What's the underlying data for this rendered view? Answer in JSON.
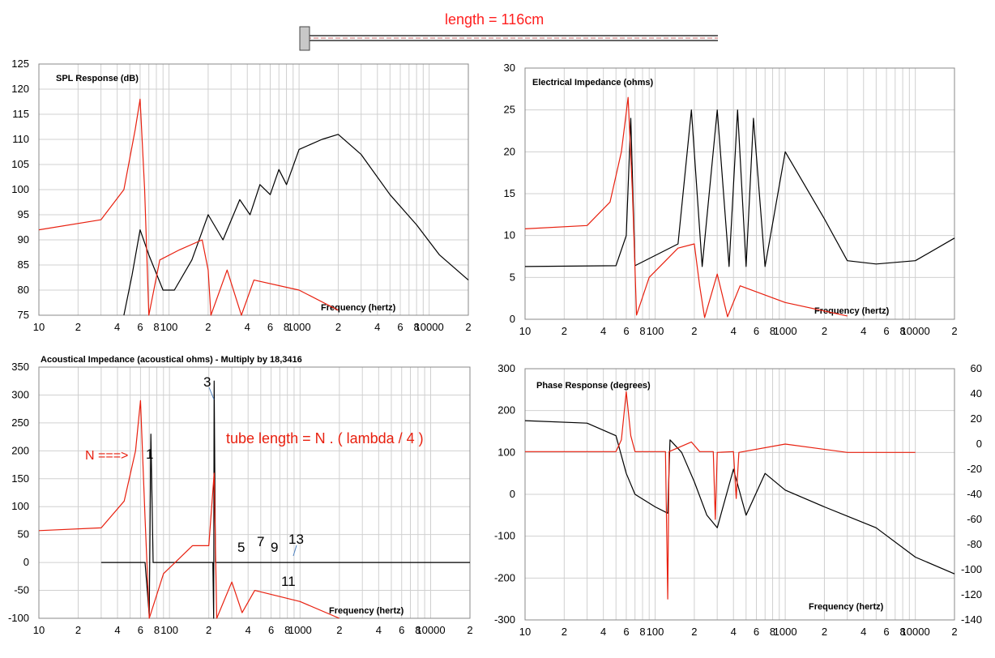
{
  "header": {
    "length_label": "length = 116cm"
  },
  "colors": {
    "red": "#e8200f",
    "black": "#000000",
    "grid": "#d0d0d0",
    "frame": "#888888"
  },
  "charts": [
    {
      "id": "spl",
      "title": "SPL Response (dB)",
      "xlabel": "Frequency (hertz)",
      "xscale": "log",
      "xlim": [
        10,
        20000
      ],
      "ylim": [
        75,
        125
      ],
      "yticks": [
        "75",
        "80",
        "85",
        "90",
        "95",
        "100",
        "105",
        "110",
        "115",
        "120",
        "125"
      ],
      "xticklabels": [
        "10",
        "2",
        "4",
        "6",
        "8",
        "100",
        "2",
        "4",
        "6",
        "8",
        "1000",
        "2",
        "4",
        "6",
        "8",
        "10000",
        "2"
      ],
      "grid": true
    },
    {
      "id": "impedance",
      "title": "Electrical Impedance (ohms)",
      "xlabel": "Frequency (hertz)",
      "xscale": "log",
      "xlim": [
        10,
        20000
      ],
      "ylim": [
        0,
        30
      ],
      "yticks": [
        "0",
        "5",
        "10",
        "15",
        "20",
        "25",
        "30"
      ],
      "xticklabels": [
        "10",
        "2",
        "4",
        "6",
        "8",
        "100",
        "2",
        "4",
        "6",
        "8",
        "1000",
        "2",
        "4",
        "6",
        "8",
        "10000",
        "2"
      ],
      "grid": true
    },
    {
      "id": "acoustic",
      "title": "Acoustical Impedance (acoustical ohms) - Multiply by 18,3416",
      "xlabel": "Frequency (hertz)",
      "xscale": "log",
      "xlim": [
        10,
        20000
      ],
      "ylim": [
        -100,
        350
      ],
      "yticks": [
        "-100",
        "-50",
        "0",
        "50",
        "100",
        "150",
        "200",
        "250",
        "300",
        "350"
      ],
      "xticklabels": [
        "10",
        "2",
        "4",
        "6",
        "8",
        "100",
        "2",
        "4",
        "6",
        "8",
        "1000",
        "2",
        "4",
        "6",
        "8",
        "10000",
        "2"
      ],
      "grid": true,
      "annotation_formula": "tube length = N . ( lambda / 4 )",
      "annotation_n": "N  ===>",
      "harmonic_labels": [
        "1",
        "3",
        "5",
        "7",
        "9",
        "11",
        "13"
      ]
    },
    {
      "id": "phase",
      "title": "Phase Response (degrees)",
      "xlabel": "Frequency (hertz)",
      "xscale": "log",
      "xlim": [
        10,
        20000
      ],
      "ylim": [
        -300,
        300
      ],
      "yticks": [
        "-300",
        "-200",
        "-100",
        "0",
        "100",
        "200",
        "300"
      ],
      "y2lim": [
        -140,
        60
      ],
      "y2ticks": [
        "-140",
        "-120",
        "-100",
        "-80",
        "-60",
        "-40",
        "-20",
        "0",
        "20",
        "40",
        "60"
      ],
      "xticklabels": [
        "10",
        "2",
        "4",
        "6",
        "8",
        "100",
        "2",
        "4",
        "6",
        "8",
        "1000",
        "2",
        "4",
        "6",
        "8",
        "10000",
        "2"
      ],
      "grid": true
    }
  ],
  "chart_data": [
    {
      "type": "line",
      "title": "SPL Response (dB)",
      "xlabel": "Frequency (hertz)",
      "ylim": [
        75,
        125
      ],
      "series": [
        {
          "color": "#000000",
          "points": [
            [
              45,
              75
            ],
            [
              52,
              83
            ],
            [
              60,
              92
            ],
            [
              70,
              87
            ],
            [
              90,
              80
            ],
            [
              110,
              80
            ],
            [
              150,
              86
            ],
            [
              200,
              95
            ],
            [
              260,
              90
            ],
            [
              350,
              98
            ],
            [
              420,
              95
            ],
            [
              500,
              101
            ],
            [
              600,
              99
            ],
            [
              700,
              104
            ],
            [
              800,
              101
            ],
            [
              1000,
              108
            ],
            [
              1500,
              110
            ],
            [
              2000,
              111
            ],
            [
              3000,
              107
            ],
            [
              5000,
              99
            ],
            [
              8000,
              93
            ],
            [
              12000,
              87
            ],
            [
              20000,
              82
            ]
          ]
        },
        {
          "color": "#e8200f",
          "points": [
            [
              10,
              92
            ],
            [
              30,
              94
            ],
            [
              45,
              100
            ],
            [
              55,
              112
            ],
            [
              60,
              118
            ],
            [
              65,
              100
            ],
            [
              70,
              75
            ],
            [
              85,
              86
            ],
            [
              120,
              88
            ],
            [
              180,
              90
            ],
            [
              200,
              84
            ],
            [
              210,
              75
            ],
            [
              280,
              84
            ],
            [
              360,
              75
            ],
            [
              450,
              82
            ],
            [
              1000,
              80
            ],
            [
              2000,
              76
            ]
          ]
        }
      ]
    },
    {
      "type": "line",
      "title": "Electrical Impedance (ohms)",
      "xlabel": "Frequency (hertz)",
      "ylim": [
        0,
        30
      ],
      "series": [
        {
          "color": "#000000",
          "points": [
            [
              10,
              6.3
            ],
            [
              50,
              6.4
            ],
            [
              60,
              10
            ],
            [
              65,
              24
            ],
            [
              70,
              6.4
            ],
            [
              150,
              9
            ],
            [
              190,
              25
            ],
            [
              230,
              6.3
            ],
            [
              300,
              25
            ],
            [
              370,
              6.3
            ],
            [
              430,
              25
            ],
            [
              500,
              6.3
            ],
            [
              570,
              24
            ],
            [
              700,
              6.3
            ],
            [
              1000,
              20
            ],
            [
              2000,
              12
            ],
            [
              3000,
              7
            ],
            [
              5000,
              6.6
            ],
            [
              10000,
              7
            ],
            [
              20000,
              9.7
            ]
          ]
        },
        {
          "color": "#e8200f",
          "points": [
            [
              10,
              10.8
            ],
            [
              30,
              11.2
            ],
            [
              45,
              14
            ],
            [
              55,
              20
            ],
            [
              62,
              26.5
            ],
            [
              67,
              15
            ],
            [
              72,
              0.5
            ],
            [
              90,
              5
            ],
            [
              150,
              8.5
            ],
            [
              200,
              9
            ],
            [
              220,
              4
            ],
            [
              240,
              0.2
            ],
            [
              300,
              5.4
            ],
            [
              360,
              0.3
            ],
            [
              450,
              4
            ],
            [
              1000,
              2
            ],
            [
              3000,
              0.4
            ]
          ]
        }
      ]
    },
    {
      "type": "line",
      "title": "Acoustical Impedance (acoustical ohms) - Multiply by 18,3416",
      "xlabel": "Frequency (hertz)",
      "ylim": [
        -100,
        350
      ],
      "series": [
        {
          "color": "#000000",
          "points": [
            [
              30,
              0
            ],
            [
              65,
              0
            ],
            [
              70,
              -95
            ],
            [
              72,
              230
            ],
            [
              75,
              0
            ],
            [
              215,
              0
            ],
            [
              218,
              -100
            ],
            [
              220,
              325
            ],
            [
              225,
              0
            ],
            [
              20000,
              0
            ]
          ]
        },
        {
          "color": "#e8200f",
          "points": [
            [
              10,
              57
            ],
            [
              30,
              62
            ],
            [
              45,
              110
            ],
            [
              55,
              200
            ],
            [
              60,
              290
            ],
            [
              65,
              80
            ],
            [
              70,
              -100
            ],
            [
              90,
              -20
            ],
            [
              150,
              30
            ],
            [
              200,
              30
            ],
            [
              220,
              160
            ],
            [
              230,
              -100
            ],
            [
              300,
              -35
            ],
            [
              360,
              -90
            ],
            [
              450,
              -50
            ],
            [
              1000,
              -70
            ],
            [
              2000,
              -100
            ]
          ]
        }
      ]
    },
    {
      "type": "line",
      "title": "Phase Response (degrees)",
      "xlabel": "Frequency (hertz)",
      "ylim": [
        -300,
        300
      ],
      "series": [
        {
          "color": "#000000",
          "points": [
            [
              10,
              176
            ],
            [
              30,
              170
            ],
            [
              50,
              140
            ],
            [
              60,
              50
            ],
            [
              70,
              0
            ],
            [
              100,
              -30
            ],
            [
              125,
              -45
            ],
            [
              130,
              130
            ],
            [
              160,
              100
            ],
            [
              200,
              30
            ],
            [
              250,
              -50
            ],
            [
              300,
              -80
            ],
            [
              400,
              60
            ],
            [
              500,
              -50
            ],
            [
              700,
              50
            ],
            [
              1000,
              10
            ],
            [
              2000,
              -30
            ],
            [
              5000,
              -80
            ],
            [
              10000,
              -150
            ],
            [
              20000,
              -190
            ]
          ]
        },
        {
          "color": "#e8200f",
          "points": [
            [
              10,
              102
            ],
            [
              50,
              102
            ],
            [
              55,
              130
            ],
            [
              60,
              245
            ],
            [
              65,
              140
            ],
            [
              70,
              102
            ],
            [
              120,
              102
            ],
            [
              125,
              -250
            ],
            [
              128,
              102
            ],
            [
              190,
              125
            ],
            [
              220,
              102
            ],
            [
              280,
              102
            ],
            [
              290,
              -60
            ],
            [
              300,
              100
            ],
            [
              400,
              102
            ],
            [
              420,
              -10
            ],
            [
              440,
              100
            ],
            [
              1000,
              120
            ],
            [
              3000,
              100
            ],
            [
              10000,
              100
            ]
          ]
        }
      ]
    }
  ]
}
